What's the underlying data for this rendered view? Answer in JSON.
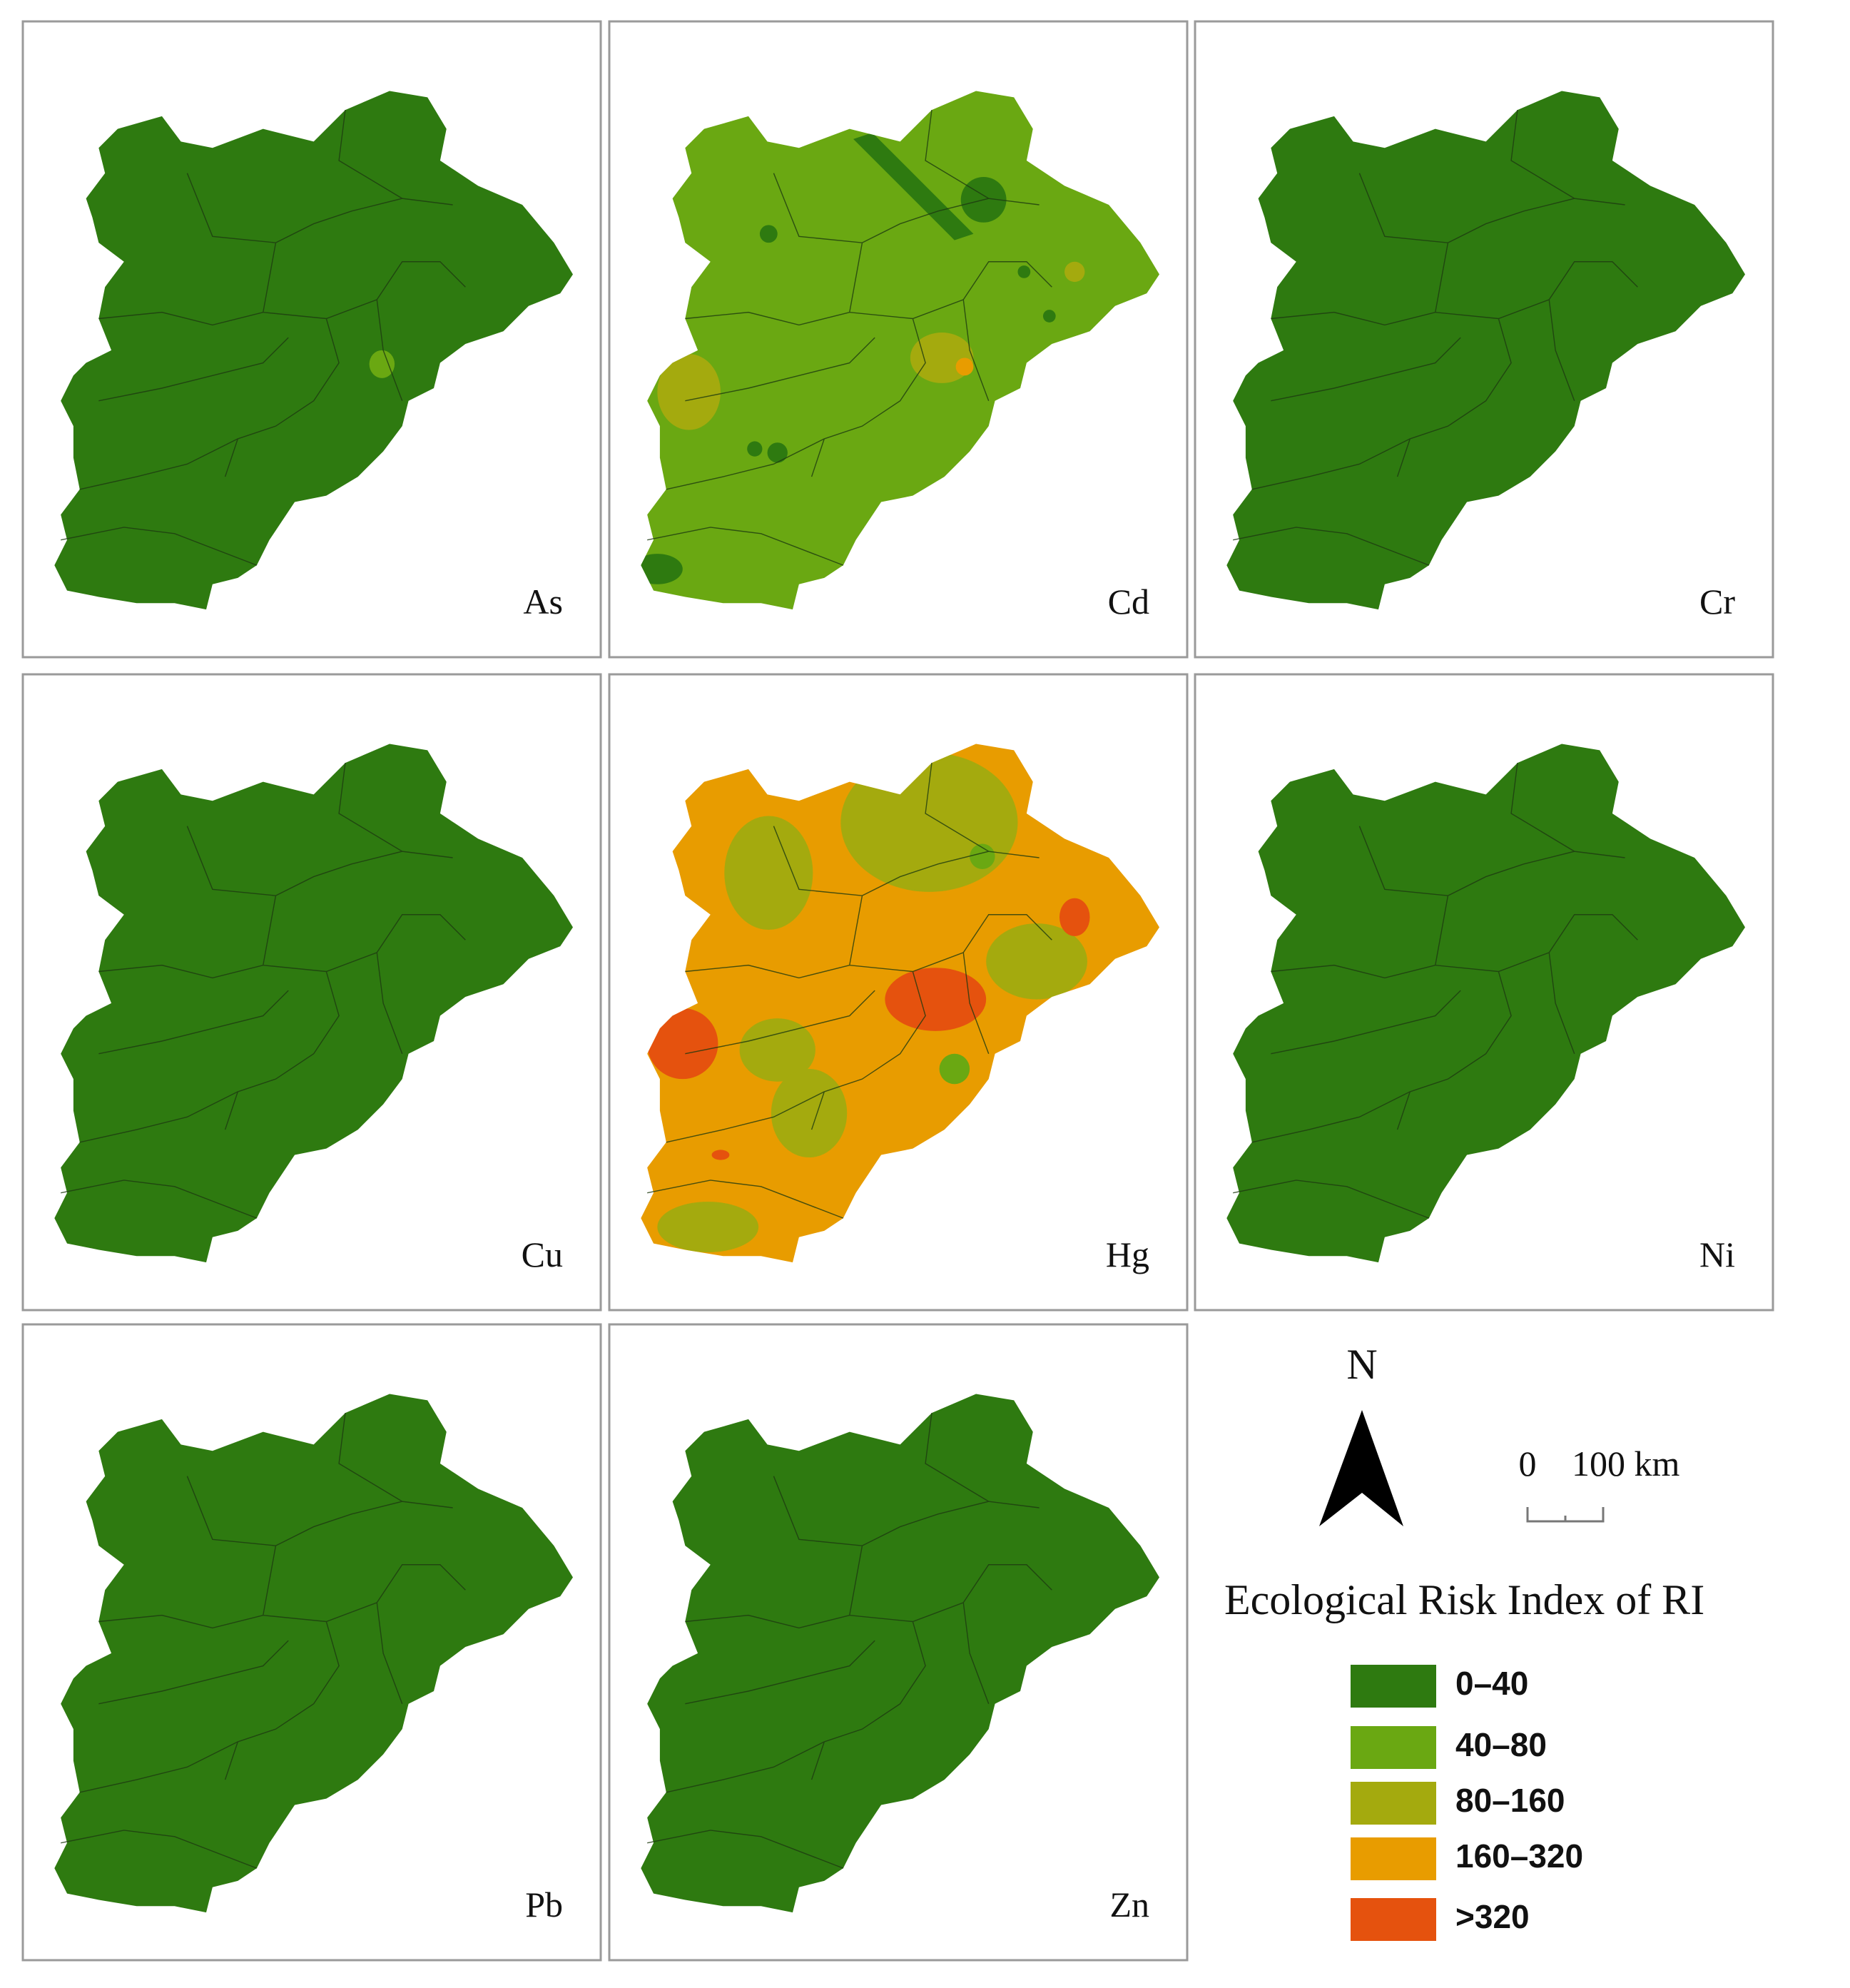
{
  "panels": [
    {
      "label": "As"
    },
    {
      "label": "Cd"
    },
    {
      "label": "Cr"
    },
    {
      "label": "Cu"
    },
    {
      "label": "Hg"
    },
    {
      "label": "Ni"
    },
    {
      "label": "Pb"
    },
    {
      "label": "Zn"
    }
  ],
  "north": "N",
  "scale_bar": {
    "start": "0",
    "end": "100 km"
  },
  "legend": {
    "title": "Ecological Risk Index of RI",
    "items": [
      {
        "label": "0–40",
        "color": "#2e7a10"
      },
      {
        "label": "40–80",
        "color": "#6aa812"
      },
      {
        "label": "80–160",
        "color": "#a4aa0e"
      },
      {
        "label": "160–320",
        "color": "#e89c00"
      },
      {
        "label": ">320",
        "color": "#e5520e"
      }
    ]
  }
}
